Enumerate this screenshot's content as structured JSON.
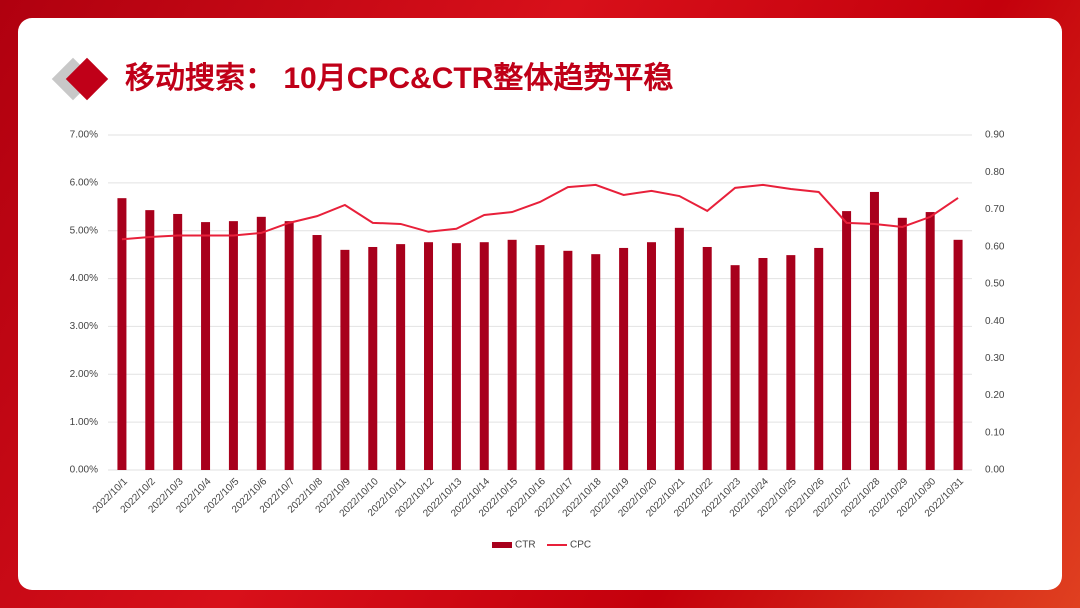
{
  "chart_data": {
    "type": "bar-line",
    "title": "移动搜索： 10月CPC&CTR整体趋势平稳",
    "categories": [
      "2022/10/1",
      "2022/10/2",
      "2022/10/3",
      "2022/10/4",
      "2022/10/5",
      "2022/10/6",
      "2022/10/7",
      "2022/10/8",
      "2022/10/9",
      "2022/10/10",
      "2022/10/11",
      "2022/10/12",
      "2022/10/13",
      "2022/10/14",
      "2022/10/15",
      "2022/10/16",
      "2022/10/17",
      "2022/10/18",
      "2022/10/19",
      "2022/10/20",
      "2022/10/21",
      "2022/10/22",
      "2022/10/23",
      "2022/10/24",
      "2022/10/25",
      "2022/10/26",
      "2022/10/27",
      "2022/10/28",
      "2022/10/29",
      "2022/10/30",
      "2022/10/31"
    ],
    "series": [
      {
        "name": "CTR",
        "type": "bar",
        "color": "#a8001c",
        "values": [
          5.68,
          5.43,
          5.35,
          5.18,
          5.2,
          5.29,
          5.2,
          4.91,
          4.6,
          4.66,
          4.72,
          4.76,
          4.74,
          4.76,
          4.81,
          4.7,
          4.58,
          4.51,
          4.64,
          4.76,
          5.06,
          4.66,
          4.28,
          4.43,
          4.49,
          4.64,
          5.41,
          5.81,
          5.27,
          5.39,
          4.81
        ]
      },
      {
        "name": "CPC",
        "type": "line",
        "axis": "y2",
        "color": "#e8203a",
        "values": [
          0.62,
          0.626,
          0.63,
          0.63,
          0.63,
          0.637,
          0.664,
          0.682,
          0.712,
          0.664,
          0.661,
          0.64,
          0.648,
          0.685,
          0.693,
          0.72,
          0.76,
          0.766,
          0.739,
          0.75,
          0.736,
          0.696,
          0.758,
          0.766,
          0.755,
          0.747,
          0.664,
          0.661,
          0.653,
          0.68,
          0.731
        ]
      }
    ],
    "ylim": [
      0,
      7
    ],
    "yticks": [
      {
        "value": 0,
        "label": "0.00%"
      },
      {
        "value": 1,
        "label": "1.00%"
      },
      {
        "value": 2,
        "label": "2.00%"
      },
      {
        "value": 3,
        "label": "3.00%"
      },
      {
        "value": 4,
        "label": "4.00%"
      },
      {
        "value": 5,
        "label": "5.00%"
      },
      {
        "value": 6,
        "label": "6.00%"
      },
      {
        "value": 7,
        "label": "7.00%"
      }
    ],
    "y2lim": [
      0,
      0.9
    ],
    "y2ticks": [
      {
        "value": 0,
        "label": "0.00"
      },
      {
        "value": 0.1,
        "label": "0.10"
      },
      {
        "value": 0.2,
        "label": "0.20"
      },
      {
        "value": 0.3,
        "label": "0.30"
      },
      {
        "value": 0.4,
        "label": "0.40"
      },
      {
        "value": 0.5,
        "label": "0.50"
      },
      {
        "value": 0.6,
        "label": "0.60"
      },
      {
        "value": 0.7,
        "label": "0.70"
      },
      {
        "value": 0.8,
        "label": "0.80"
      },
      {
        "value": 0.9,
        "label": "0.90"
      }
    ],
    "grid": true,
    "legend": "bottom"
  }
}
